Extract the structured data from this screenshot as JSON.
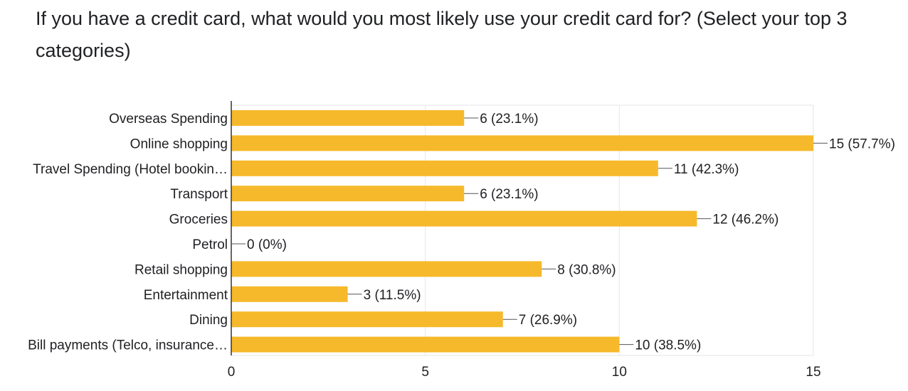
{
  "question": {
    "title": "If you have a credit card, what would you most likely use your credit card for? (Select your top 3 categories)"
  },
  "colors": {
    "bar": "#f6b92b",
    "axis": "#333333",
    "grid": "#e6e6e6",
    "text": "#202124",
    "leader": "#555555"
  },
  "chart_data": {
    "type": "bar",
    "orientation": "horizontal",
    "categories": [
      "Overseas Spending",
      "Online shopping",
      "Travel Spending (Hotel bookin…",
      "Transport",
      "Groceries",
      "Petrol",
      "Retail shopping",
      "Entertainment",
      "Dining",
      "Bill payments (Telco, insurance…"
    ],
    "values": [
      6,
      15,
      11,
      6,
      12,
      0,
      8,
      3,
      7,
      10
    ],
    "data_labels": [
      "6 (23.1%)",
      "15 (57.7%)",
      "11 (42.3%)",
      "6 (23.1%)",
      "12 (46.2%)",
      "0 (0%)",
      "8 (30.8%)",
      "3 (11.5%)",
      "7 (26.9%)",
      "10 (38.5%)"
    ],
    "x_ticks": [
      0,
      5,
      10,
      15
    ],
    "xlim": [
      0,
      15
    ],
    "grid": true,
    "xlabel": "",
    "ylabel": ""
  }
}
